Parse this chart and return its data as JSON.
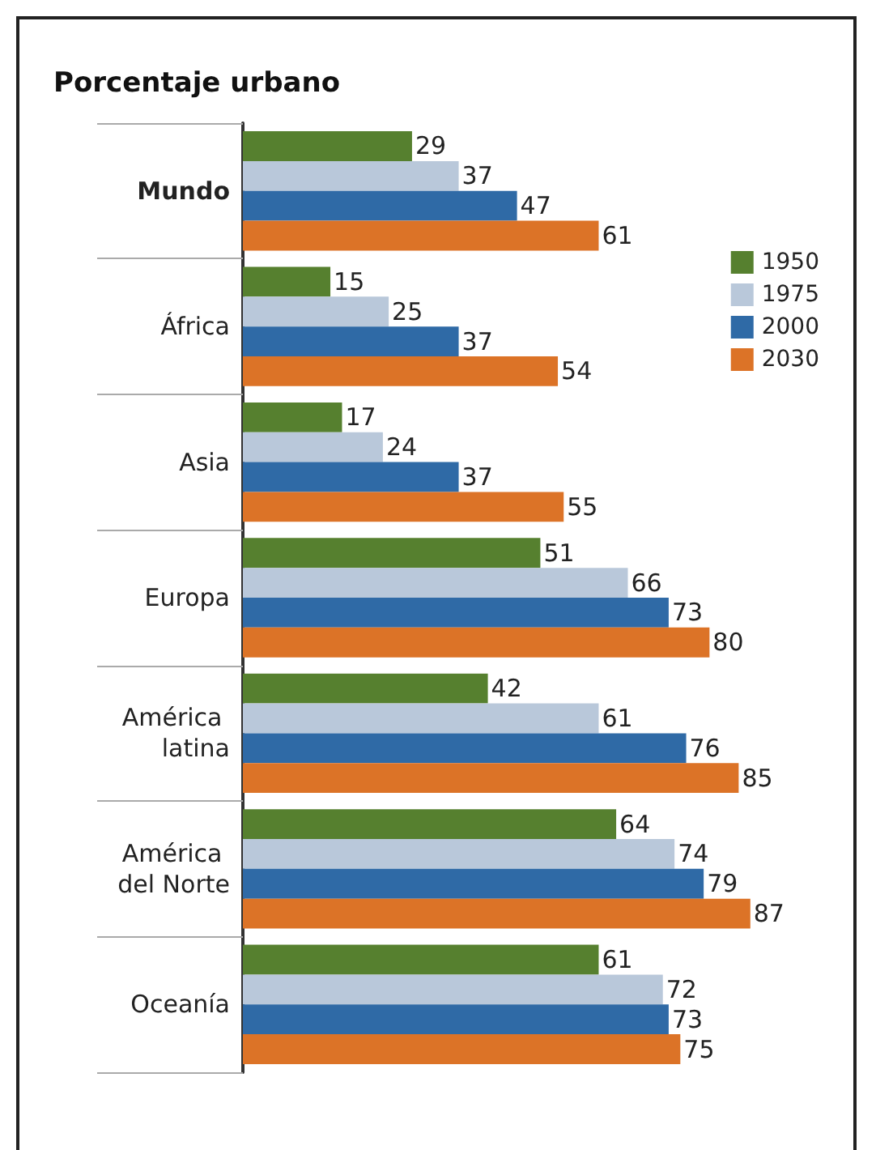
{
  "chart_data": {
    "type": "bar",
    "orientation": "horizontal",
    "title": "Porcentaje urbano",
    "categories": [
      "Mundo",
      "África",
      "Asia",
      "Europa",
      "América latina",
      "América del Norte",
      "Oceanía"
    ],
    "series": [
      {
        "name": "1950",
        "color": "#56802f",
        "values": [
          29,
          15,
          17,
          51,
          42,
          64,
          61
        ]
      },
      {
        "name": "1975",
        "color": "#b9c8da",
        "values": [
          37,
          25,
          24,
          66,
          61,
          74,
          72
        ]
      },
      {
        "name": "2000",
        "color": "#2f6aa6",
        "values": [
          47,
          37,
          37,
          73,
          76,
          79,
          73
        ]
      },
      {
        "name": "2030",
        "color": "#dc7327",
        "values": [
          61,
          54,
          55,
          80,
          85,
          87,
          75
        ]
      }
    ],
    "data_labels": true,
    "legend": "right"
  }
}
